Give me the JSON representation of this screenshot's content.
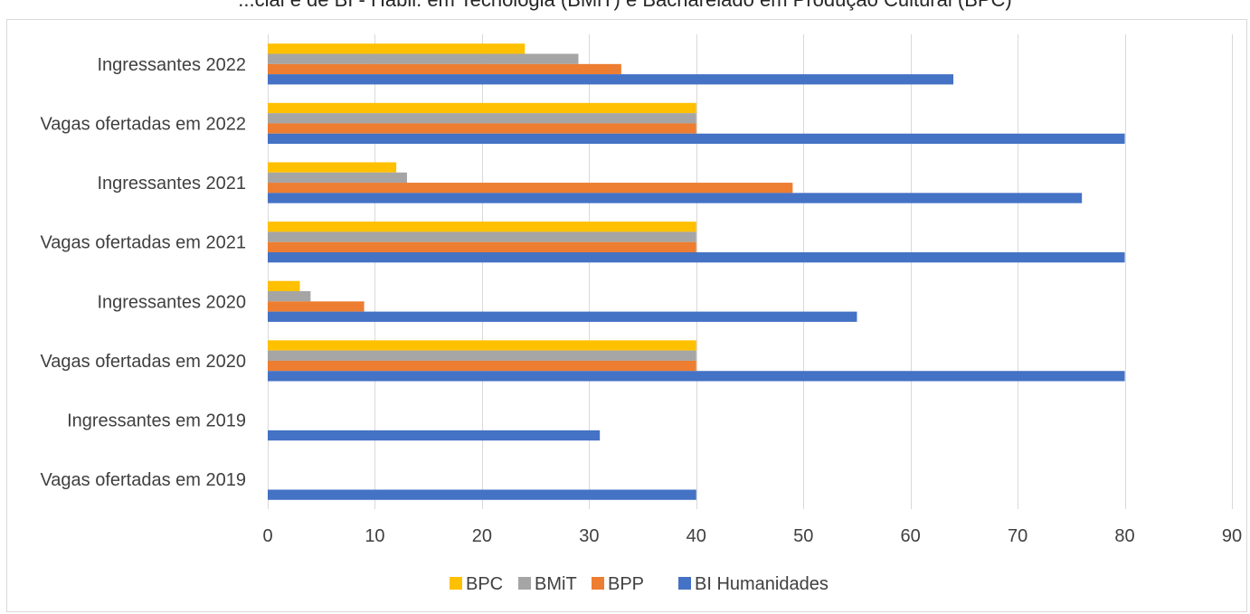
{
  "chart_data": {
    "type": "bar",
    "orientation": "horizontal",
    "title": "...cial e de BI - Habil. em Tecnologia (BMiT) e Bacharelado em Produção Cultural (BPC)",
    "categories": [
      "Ingressantes 2022",
      "Vagas ofertadas em 2022",
      "Ingressantes 2021",
      "Vagas ofertadas em 2021",
      "Ingressantes 2020",
      "Vagas ofertadas em 2020",
      "Ingressantes em 2019",
      "Vagas ofertadas em 2019"
    ],
    "series": [
      {
        "name": "BPC",
        "color": "#FFC000",
        "values": [
          24,
          40,
          12,
          40,
          3,
          40,
          null,
          null
        ]
      },
      {
        "name": "BMiT",
        "color": "#A5A5A5",
        "values": [
          29,
          40,
          13,
          40,
          4,
          40,
          null,
          null
        ]
      },
      {
        "name": "BPP",
        "color": "#ED7D31",
        "values": [
          33,
          40,
          49,
          40,
          9,
          40,
          null,
          null
        ]
      },
      {
        "name": "BI Humanidades",
        "color": "#4472C4",
        "values": [
          64,
          80,
          76,
          80,
          55,
          80,
          31,
          40
        ]
      }
    ],
    "xlim": [
      0,
      90
    ],
    "xticks": [
      "0",
      "10",
      "20",
      "30",
      "40",
      "50",
      "60",
      "70",
      "80",
      "90"
    ],
    "xlabel": "",
    "ylabel": "",
    "grid": "vertical",
    "legend_position": "bottom"
  }
}
